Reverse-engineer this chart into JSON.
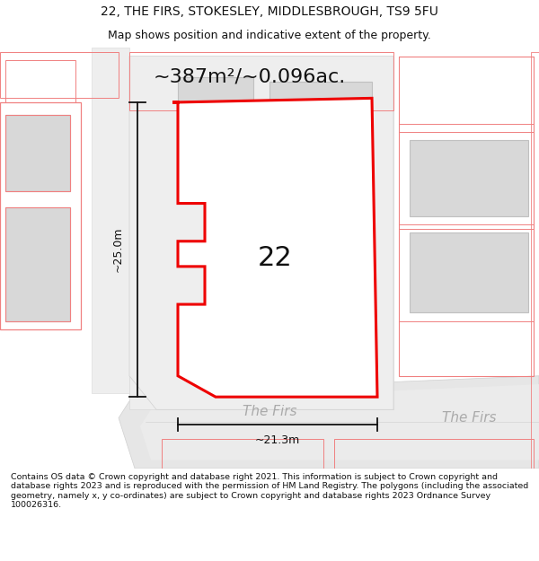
{
  "title_line1": "22, THE FIRS, STOKESLEY, MIDDLESBROUGH, TS9 5FU",
  "title_line2": "Map shows position and indicative extent of the property.",
  "area_label": "~387m²/~0.096ac.",
  "number_label": "22",
  "width_label": "~21.3m",
  "height_label": "~25.0m",
  "road_label_center": "The Firs",
  "road_label_right": "The Firs",
  "footer_text": "Contains OS data © Crown copyright and database right 2021. This information is subject to Crown copyright and database rights 2023 and is reproduced with the permission of HM Land Registry. The polygons (including the associated geometry, namely x, y co-ordinates) are subject to Crown copyright and database rights 2023 Ordnance Survey 100026316.",
  "map_bg": "#f7f7f7",
  "road_fill": "#e8e8e8",
  "building_fill": "#d8d8d8",
  "building_edge": "#c0c0c0",
  "lot_fill": "#f0f0f0",
  "lot_edge": "#e0e0e0",
  "other_stroke": "#f08080",
  "property_fill": "#ffffff",
  "property_stroke": "#ee0000",
  "dim_color": "#111111",
  "text_color": "#111111",
  "road_text_color": "#aaaaaa",
  "title_fontsize": 10,
  "subtitle_fontsize": 9,
  "area_fontsize": 16,
  "number_fontsize": 22,
  "dim_fontsize": 9,
  "road_fontsize": 11,
  "footer_fontsize": 6.8
}
